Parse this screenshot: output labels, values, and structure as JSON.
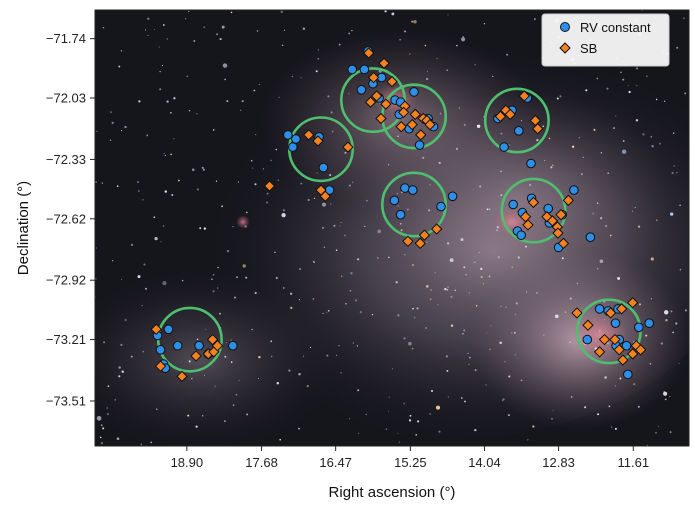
{
  "chart_data": {
    "type": "scatter",
    "background": "astronomical-image-small-magellanic-cloud",
    "xlabel": "Right ascension (°)",
    "ylabel": "Declination (°)",
    "x_axis_reversed": true,
    "xlim": [
      20.4,
      10.7
    ],
    "ylim": [
      -73.73,
      -71.6
    ],
    "x_ticks": [
      18.9,
      17.68,
      16.47,
      15.25,
      14.04,
      12.83,
      11.61
    ],
    "x_tick_labels": [
      "18.90",
      "17.68",
      "16.47",
      "15.25",
      "14.04",
      "12.83",
      "11.61"
    ],
    "y_ticks": [
      -71.74,
      -72.03,
      -72.33,
      -72.62,
      -72.92,
      -73.21,
      -73.51
    ],
    "y_tick_labels": [
      "−71.74",
      "−72.03",
      "−72.33",
      "−72.62",
      "−72.92",
      "−73.21",
      "−73.51"
    ],
    "legend": {
      "position": "top-right",
      "entries": [
        {
          "label": "RV constant",
          "marker": "circle",
          "color": "#2e8fe8"
        },
        {
          "label": "SB",
          "marker": "diamond",
          "color": "#f5811f"
        }
      ]
    },
    "fields": {
      "color": "#4fbf6f",
      "centers": [
        {
          "ra": 18.85,
          "dec": -73.21
        },
        {
          "ra": 16.71,
          "dec": -72.28
        },
        {
          "ra": 15.86,
          "dec": -72.04
        },
        {
          "ra": 15.19,
          "dec": -72.12
        },
        {
          "ra": 15.19,
          "dec": -72.55
        },
        {
          "ra": 13.51,
          "dec": -72.14
        },
        {
          "ra": 13.24,
          "dec": -72.58
        },
        {
          "ra": 12.01,
          "dec": -73.17
        }
      ]
    },
    "series": [
      {
        "name": "RV constant",
        "marker": "circle",
        "color": "#2e8fe8",
        "points": [
          [
            19.38,
            -73.19
          ],
          [
            19.33,
            -73.26
          ],
          [
            19.28,
            -73.33
          ],
          [
            19.25,
            -73.35
          ],
          [
            19.2,
            -73.16
          ],
          [
            19.05,
            -73.24
          ],
          [
            18.7,
            -73.24
          ],
          [
            18.15,
            -73.24
          ],
          [
            18.55,
            -73.28
          ],
          [
            17.25,
            -72.21
          ],
          [
            17.17,
            -72.27
          ],
          [
            17.12,
            -72.23
          ],
          [
            16.74,
            -72.22
          ],
          [
            16.67,
            -72.37
          ],
          [
            16.57,
            -72.48
          ],
          [
            16.2,
            -71.89
          ],
          [
            16.0,
            -71.89
          ],
          [
            15.94,
            -71.8
          ],
          [
            16.05,
            -71.99
          ],
          [
            15.86,
            -71.96
          ],
          [
            15.76,
            -72.03
          ],
          [
            15.72,
            -71.93
          ],
          [
            15.5,
            -72.04
          ],
          [
            15.43,
            -72.11
          ],
          [
            15.41,
            -72.05
          ],
          [
            15.19,
            -72.0
          ],
          [
            15.27,
            -72.18
          ],
          [
            14.96,
            -72.13
          ],
          [
            15.1,
            -72.26
          ],
          [
            14.87,
            -72.17
          ],
          [
            15.34,
            -72.47
          ],
          [
            15.21,
            -72.48
          ],
          [
            15.51,
            -72.53
          ],
          [
            15.41,
            -72.6
          ],
          [
            14.75,
            -72.56
          ],
          [
            14.56,
            -72.51
          ],
          [
            13.82,
            -72.13
          ],
          [
            13.59,
            -72.09
          ],
          [
            13.48,
            -72.19
          ],
          [
            13.34,
            -72.03
          ],
          [
            13.28,
            -72.35
          ],
          [
            13.72,
            -72.27
          ],
          [
            13.27,
            -72.52
          ],
          [
            13.57,
            -72.55
          ],
          [
            13.42,
            -72.59
          ],
          [
            13.5,
            -72.68
          ],
          [
            13.44,
            -72.7
          ],
          [
            13.0,
            -72.57
          ],
          [
            12.98,
            -72.64
          ],
          [
            12.83,
            -72.76
          ],
          [
            12.77,
            -72.6
          ],
          [
            12.58,
            -72.48
          ],
          [
            12.31,
            -72.71
          ],
          [
            12.16,
            -73.06
          ],
          [
            12.02,
            -73.07
          ],
          [
            11.86,
            -73.06
          ],
          [
            11.9,
            -73.13
          ],
          [
            11.84,
            -73.21
          ],
          [
            11.89,
            -73.24
          ],
          [
            11.72,
            -73.24
          ],
          [
            11.7,
            -73.38
          ],
          [
            11.52,
            -73.15
          ],
          [
            11.35,
            -73.13
          ],
          [
            12.36,
            -73.21
          ]
        ]
      },
      {
        "name": "SB",
        "marker": "diamond",
        "color": "#f5811f",
        "points": [
          [
            19.4,
            -73.16
          ],
          [
            19.33,
            -73.34
          ],
          [
            18.98,
            -73.39
          ],
          [
            18.75,
            -73.29
          ],
          [
            18.55,
            -73.28
          ],
          [
            18.48,
            -73.21
          ],
          [
            18.46,
            -73.27
          ],
          [
            18.4,
            -73.24
          ],
          [
            17.55,
            -72.46
          ],
          [
            16.91,
            -72.21
          ],
          [
            16.76,
            -72.24
          ],
          [
            16.71,
            -72.48
          ],
          [
            16.64,
            -72.51
          ],
          [
            16.27,
            -72.27
          ],
          [
            15.93,
            -71.81
          ],
          [
            15.68,
            -71.86
          ],
          [
            15.85,
            -71.93
          ],
          [
            15.8,
            -72.02
          ],
          [
            15.9,
            -72.05
          ],
          [
            15.65,
            -72.06
          ],
          [
            15.73,
            -72.13
          ],
          [
            15.55,
            -71.95
          ],
          [
            15.4,
            -72.17
          ],
          [
            15.34,
            -72.07
          ],
          [
            15.22,
            -72.16
          ],
          [
            15.17,
            -72.11
          ],
          [
            15.04,
            -72.13
          ],
          [
            14.98,
            -72.14
          ],
          [
            15.08,
            -72.21
          ],
          [
            14.93,
            -72.16
          ],
          [
            15.36,
            -72.1
          ],
          [
            15.29,
            -72.73
          ],
          [
            15.02,
            -72.7
          ],
          [
            15.09,
            -72.74
          ],
          [
            14.82,
            -72.67
          ],
          [
            13.78,
            -72.12
          ],
          [
            13.69,
            -72.09
          ],
          [
            13.62,
            -72.11
          ],
          [
            13.21,
            -72.14
          ],
          [
            13.17,
            -72.18
          ],
          [
            13.39,
            -72.02
          ],
          [
            13.37,
            -72.61
          ],
          [
            13.33,
            -72.65
          ],
          [
            13.24,
            -72.54
          ],
          [
            13.02,
            -72.61
          ],
          [
            12.93,
            -72.63
          ],
          [
            12.85,
            -72.66
          ],
          [
            12.79,
            -72.6
          ],
          [
            12.75,
            -72.74
          ],
          [
            12.84,
            -72.69
          ],
          [
            12.67,
            -72.53
          ],
          [
            12.53,
            -73.08
          ],
          [
            12.35,
            -73.14
          ],
          [
            11.98,
            -73.08
          ],
          [
            11.8,
            -73.06
          ],
          [
            11.62,
            -73.03
          ],
          [
            11.91,
            -73.21
          ],
          [
            11.84,
            -73.26
          ],
          [
            11.78,
            -73.31
          ],
          [
            11.56,
            -73.24
          ],
          [
            11.62,
            -73.28
          ],
          [
            11.49,
            -73.26
          ],
          [
            12.16,
            -73.27
          ],
          [
            12.08,
            -73.21
          ]
        ]
      }
    ]
  }
}
